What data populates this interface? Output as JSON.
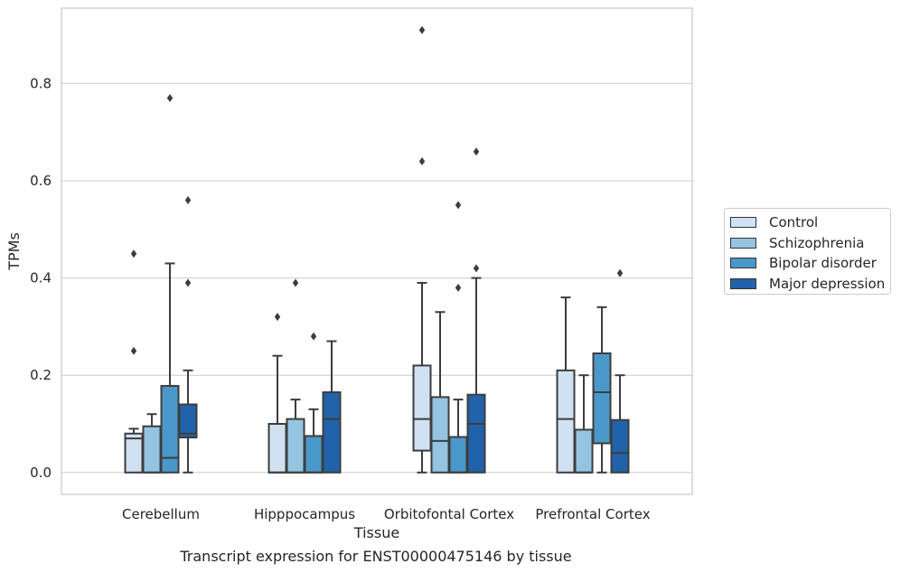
{
  "chart_data": {
    "type": "box",
    "xlabel": "Tissue",
    "ylabel": "TPMs",
    "ylim": [
      -0.045,
      0.955
    ],
    "yticks": [
      "0.0",
      "0.2",
      "0.4",
      "0.6",
      "0.8"
    ],
    "grid": true,
    "legend_position": "right",
    "categories": [
      "Cerebellum",
      "Hipppocampus",
      "Orbitofontal Cortex",
      "Prefrontal Cortex"
    ],
    "series": [
      {
        "name": "Control",
        "color": "#d0e1f2",
        "boxes": [
          {
            "whisker_low": 0.0,
            "q1": 0.0,
            "median": 0.07,
            "q3": 0.08,
            "whisker_high": 0.09,
            "outliers": [
              0.25,
              0.45
            ]
          },
          {
            "whisker_low": 0.0,
            "q1": 0.0,
            "median": 0.0,
            "q3": 0.1,
            "whisker_high": 0.24,
            "outliers": [
              0.32
            ]
          },
          {
            "whisker_low": 0.0,
            "q1": 0.045,
            "median": 0.11,
            "q3": 0.22,
            "whisker_high": 0.39,
            "outliers": [
              0.64,
              0.91
            ]
          },
          {
            "whisker_low": 0.0,
            "q1": 0.0,
            "median": 0.11,
            "q3": 0.21,
            "whisker_high": 0.36,
            "outliers": []
          }
        ]
      },
      {
        "name": "Schizophrenia",
        "color": "#94c4df",
        "boxes": [
          {
            "whisker_low": 0.0,
            "q1": 0.0,
            "median": 0.0,
            "q3": 0.095,
            "whisker_high": 0.12,
            "outliers": []
          },
          {
            "whisker_low": 0.0,
            "q1": 0.0,
            "median": 0.0,
            "q3": 0.11,
            "whisker_high": 0.15,
            "outliers": [
              0.39
            ]
          },
          {
            "whisker_low": 0.0,
            "q1": 0.0,
            "median": 0.065,
            "q3": 0.155,
            "whisker_high": 0.33,
            "outliers": []
          },
          {
            "whisker_low": 0.0,
            "q1": 0.0,
            "median": 0.0,
            "q3": 0.088,
            "whisker_high": 0.2,
            "outliers": []
          }
        ]
      },
      {
        "name": "Bipolar disorder",
        "color": "#4a98c9",
        "boxes": [
          {
            "whisker_low": 0.0,
            "q1": 0.0,
            "median": 0.03,
            "q3": 0.178,
            "whisker_high": 0.43,
            "outliers": [
              0.77
            ]
          },
          {
            "whisker_low": 0.0,
            "q1": 0.0,
            "median": 0.0,
            "q3": 0.075,
            "whisker_high": 0.13,
            "outliers": [
              0.28
            ]
          },
          {
            "whisker_low": 0.0,
            "q1": 0.0,
            "median": 0.0,
            "q3": 0.073,
            "whisker_high": 0.15,
            "outliers": [
              0.38,
              0.55
            ]
          },
          {
            "whisker_low": 0.0,
            "q1": 0.06,
            "median": 0.165,
            "q3": 0.245,
            "whisker_high": 0.34,
            "outliers": []
          }
        ]
      },
      {
        "name": "Major depression",
        "color": "#2163aa",
        "boxes": [
          {
            "whisker_low": 0.0,
            "q1": 0.072,
            "median": 0.08,
            "q3": 0.14,
            "whisker_high": 0.21,
            "outliers": [
              0.39,
              0.56
            ]
          },
          {
            "whisker_low": 0.0,
            "q1": 0.0,
            "median": 0.11,
            "q3": 0.165,
            "whisker_high": 0.27,
            "outliers": []
          },
          {
            "whisker_low": 0.0,
            "q1": 0.0,
            "median": 0.1,
            "q3": 0.16,
            "whisker_high": 0.4,
            "outliers": [
              0.42,
              0.66
            ]
          },
          {
            "whisker_low": 0.0,
            "q1": 0.0,
            "median": 0.04,
            "q3": 0.108,
            "whisker_high": 0.2,
            "outliers": [
              0.41
            ]
          }
        ]
      }
    ]
  },
  "caption": "Transcript expression for ENST00000475146 by tissue"
}
